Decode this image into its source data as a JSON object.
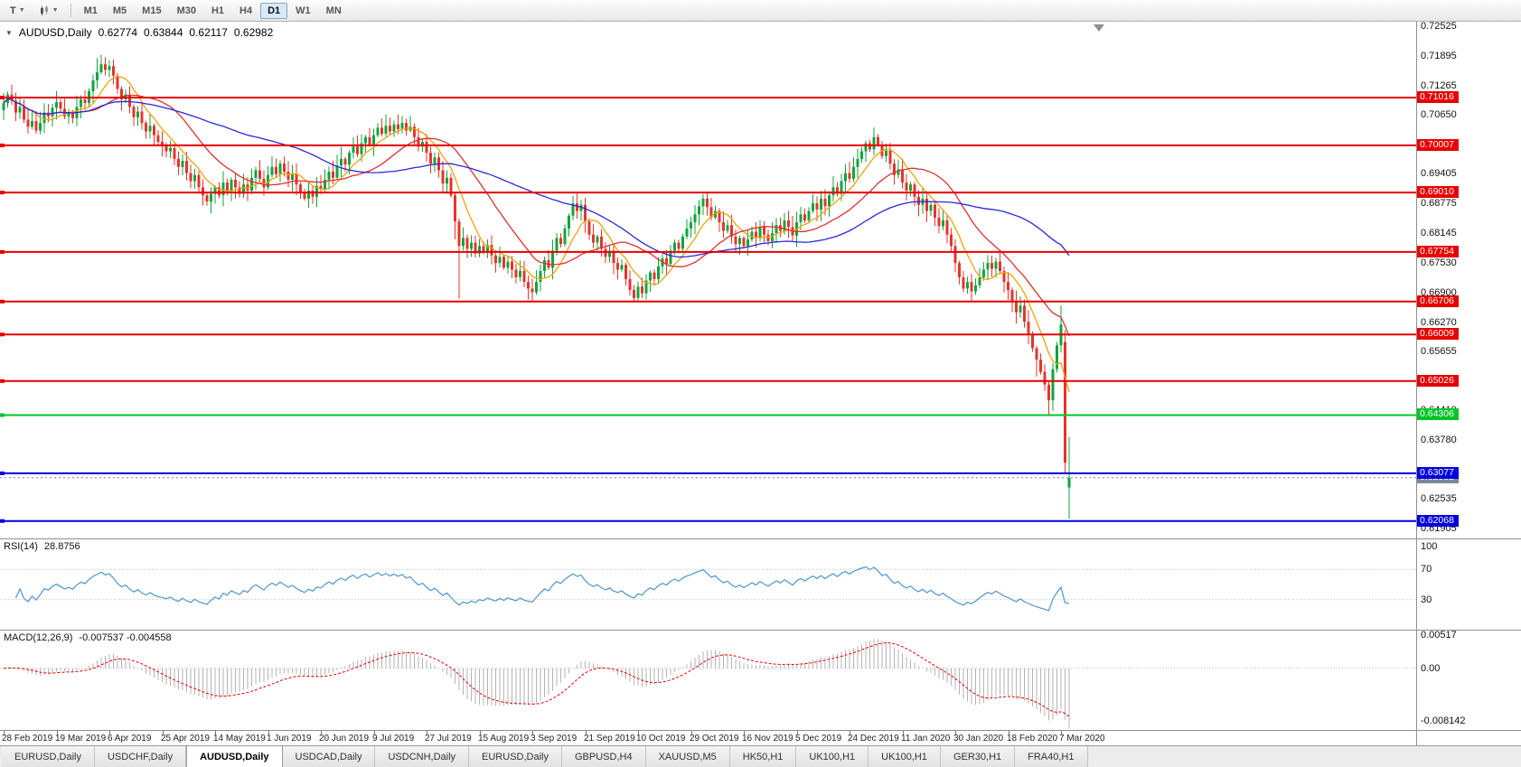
{
  "toolbar": {
    "tools_button_label": "T",
    "timeframes": [
      "M1",
      "M5",
      "M15",
      "M30",
      "H1",
      "H4",
      "D1",
      "W1",
      "MN"
    ],
    "active_timeframe": "D1"
  },
  "chart": {
    "title": {
      "symbol": "AUDUSD,Daily",
      "open": "0.62774",
      "high": "0.63844",
      "low": "0.62117",
      "close": "0.62982"
    }
  },
  "chart_data": {
    "type": "candlestick",
    "symbol": "AUDUSD",
    "timeframe": "Daily",
    "up_color": "#0fa53c",
    "down_color": "#e5342c",
    "price_range": {
      "max": 0.7262,
      "min": 0.617
    },
    "price_axis_labels": [
      "0.72525",
      "0.71895",
      "0.71265",
      "0.70650",
      "0.70020",
      "0.69405",
      "0.68775",
      "0.68145",
      "0.67530",
      "0.66900",
      "0.66270",
      "0.65655",
      "0.64410",
      "0.63780",
      "0.62535",
      "0.61905"
    ],
    "x_labels": [
      "28 Feb 2019",
      "19 Mar 2019",
      "6 Apr 2019",
      "25 Apr 2019",
      "14 May 2019",
      "1 Jun 2019",
      "20 Jun 2019",
      "9 Jul 2019",
      "27 Jul 2019",
      "15 Aug 2019",
      "3 Sep 2019",
      "21 Sep 2019",
      "10 Oct 2019",
      "29 Oct 2019",
      "16 Nov 2019",
      "5 Dec 2019",
      "24 Dec 2019",
      "11 Jan 2020",
      "30 Jan 2020",
      "18 Feb 2020",
      "7 Mar 2020"
    ],
    "x_label_indices": [
      0,
      13,
      26,
      39,
      52,
      65,
      78,
      91,
      104,
      117,
      130,
      143,
      156,
      169,
      182,
      195,
      208,
      221,
      234,
      247,
      260
    ],
    "candles": {
      "first_open": 0.7075,
      "closes": [
        0.709,
        0.7108,
        0.7095,
        0.707,
        0.7082,
        0.7055,
        0.704,
        0.7052,
        0.7032,
        0.7048,
        0.707,
        0.7062,
        0.708,
        0.7092,
        0.7078,
        0.7062,
        0.707,
        0.7058,
        0.7082,
        0.7098,
        0.709,
        0.7115,
        0.7138,
        0.7155,
        0.7172,
        0.716,
        0.7168,
        0.7148,
        0.712,
        0.7098,
        0.7108,
        0.7082,
        0.706,
        0.7072,
        0.7048,
        0.703,
        0.7042,
        0.7022,
        0.7008,
        0.7,
        0.6988,
        0.6995,
        0.6972,
        0.6955,
        0.6968,
        0.6942,
        0.6925,
        0.6938,
        0.6912,
        0.6895,
        0.6882,
        0.6898,
        0.6912,
        0.6895,
        0.6922,
        0.6905,
        0.6928,
        0.6912,
        0.6898,
        0.6918,
        0.6905,
        0.6932,
        0.6948,
        0.693,
        0.6912,
        0.6938,
        0.6955,
        0.694,
        0.6962,
        0.6945,
        0.6928,
        0.694,
        0.6918,
        0.6902,
        0.6888,
        0.6905,
        0.6892,
        0.6915,
        0.6908,
        0.6928,
        0.6945,
        0.6932,
        0.6958,
        0.6972,
        0.696,
        0.6985,
        0.6998,
        0.6982,
        0.7005,
        0.7018,
        0.7002,
        0.7022,
        0.7038,
        0.7025,
        0.7042,
        0.703,
        0.7045,
        0.7035,
        0.7048,
        0.7032,
        0.704,
        0.7018,
        0.6998,
        0.7008,
        0.6985,
        0.6962,
        0.6975,
        0.6948,
        0.692,
        0.6932,
        0.6895,
        0.684,
        0.6788,
        0.6805,
        0.6782,
        0.6795,
        0.6772,
        0.6788,
        0.6775,
        0.679,
        0.6768,
        0.6752,
        0.6765,
        0.6742,
        0.6755,
        0.6738,
        0.6722,
        0.6735,
        0.6712,
        0.6698,
        0.669,
        0.6712,
        0.6735,
        0.6758,
        0.6742,
        0.6778,
        0.6805,
        0.6792,
        0.6825,
        0.6852,
        0.6878,
        0.6862,
        0.6875,
        0.684,
        0.6812,
        0.6795,
        0.6808,
        0.6782,
        0.6765,
        0.6778,
        0.6752,
        0.6738,
        0.6748,
        0.6718,
        0.6695,
        0.6678,
        0.6702,
        0.6688,
        0.6715,
        0.6732,
        0.6718,
        0.6745,
        0.6762,
        0.675,
        0.6778,
        0.6795,
        0.6782,
        0.6808,
        0.6825,
        0.6838,
        0.6855,
        0.6872,
        0.6888,
        0.687,
        0.6848,
        0.6862,
        0.6838,
        0.682,
        0.6832,
        0.6808,
        0.6792,
        0.6805,
        0.6788,
        0.6802,
        0.6818,
        0.6805,
        0.6828,
        0.6812,
        0.6798,
        0.6815,
        0.6832,
        0.682,
        0.6842,
        0.6828,
        0.681,
        0.6838,
        0.6855,
        0.6842,
        0.6862,
        0.6878,
        0.6865,
        0.6888,
        0.6872,
        0.6895,
        0.6912,
        0.6898,
        0.6925,
        0.6942,
        0.693,
        0.6955,
        0.6972,
        0.6988,
        0.7005,
        0.6992,
        0.7018,
        0.7002,
        0.6978,
        0.699,
        0.6962,
        0.6938,
        0.695,
        0.6922,
        0.6905,
        0.6918,
        0.6892,
        0.6875,
        0.6888,
        0.6862,
        0.6875,
        0.6848,
        0.683,
        0.6842,
        0.6812,
        0.6788,
        0.6752,
        0.6722,
        0.6698,
        0.6712,
        0.6692,
        0.6705,
        0.6722,
        0.6738,
        0.6752,
        0.674,
        0.6755,
        0.6735,
        0.6712,
        0.6695,
        0.6672,
        0.6648,
        0.6662,
        0.6628,
        0.6602,
        0.6572,
        0.6548,
        0.6522,
        0.6495,
        0.6462,
        0.6528,
        0.6578,
        0.6622,
        0.633,
        0.62982
      ],
      "specials": {
        "23": {
          "h": 0.7185
        },
        "24": {
          "h": 0.7192
        },
        "26": {
          "h": 0.718
        },
        "111": {
          "l": 0.6802
        },
        "112": {
          "l": 0.66766
        },
        "129": {
          "l": 0.6675
        },
        "130": {
          "l": 0.66706
        },
        "155": {
          "l": 0.6671
        },
        "254": {
          "l": 0.6512
        },
        "257": {
          "l": 0.64306
        },
        "260": {
          "h": 0.6662
        },
        "261": {
          "o": 0.6585,
          "h": 0.661,
          "l": 0.63077
        },
        "262": {
          "o": 0.62774,
          "h": 0.63844,
          "l": 0.62117
        }
      }
    },
    "moving_averages": [
      {
        "period": 8,
        "color": "#f0a30a"
      },
      {
        "period": 21,
        "color": "#e03030"
      },
      {
        "period": 55,
        "color": "#2929d6"
      }
    ],
    "horizontal_lines": [
      {
        "price": 0.71016,
        "color": "#e60000",
        "tag": "0.71016"
      },
      {
        "price": 0.70007,
        "color": "#e60000",
        "tag": "0.70007"
      },
      {
        "price": 0.6901,
        "color": "#e60000",
        "tag": "0.69010"
      },
      {
        "price": 0.67754,
        "color": "#e60000",
        "tag": "0.67754"
      },
      {
        "price": 0.66706,
        "color": "#e60000",
        "tag": "0.66706"
      },
      {
        "price": 0.66009,
        "color": "#e60000",
        "tag": "0.66009"
      },
      {
        "price": 0.65026,
        "color": "#e60000",
        "tag": "0.65026"
      },
      {
        "price": 0.64306,
        "color": "#00c42a",
        "tag": "0.64306"
      },
      {
        "price": 0.63077,
        "color": "#0000dd",
        "tag": "0.63077"
      },
      {
        "price": 0.62068,
        "color": "#0000dd",
        "tag": "0.62068"
      }
    ],
    "bid": {
      "price": 0.62982,
      "tag": "0.62982",
      "color": "#778899"
    },
    "rsi": {
      "label": "RSI(14)",
      "value_text": "28.8756",
      "period": 14,
      "color": "#4f94cd",
      "levels": [
        70,
        30
      ],
      "axis_labels": [
        {
          "text": "100",
          "value": 100
        },
        {
          "text": "70",
          "value": 70
        },
        {
          "text": "30",
          "value": 30
        }
      ]
    },
    "macd": {
      "label": "MACD(12,26,9)",
      "value_text": "-0.007537 -0.004558",
      "fast": 12,
      "slow": 26,
      "signal": 9,
      "histogram_color": "#b3b3b3",
      "signal_color": "#e60000",
      "range_top": 0.0058,
      "range_bottom": -0.0095,
      "axis_labels": [
        {
          "text": "0.00517",
          "value": 0.00517
        },
        {
          "text": "0.00",
          "value": 0
        },
        {
          "text": "-0.008142",
          "value": -0.008142
        }
      ]
    }
  },
  "tabs": {
    "active_index": 2,
    "items": [
      "EURUSD,Daily",
      "USDCHF,Daily",
      "AUDUSD,Daily",
      "USDCAD,Daily",
      "USDCNH,Daily",
      "EURUSD,Daily",
      "GBPUSD,H4",
      "XAUUSD,M5",
      "HK50,H1",
      "UK100,H1",
      "UK100,H1",
      "GER30,H1",
      "FRA40,H1"
    ]
  }
}
